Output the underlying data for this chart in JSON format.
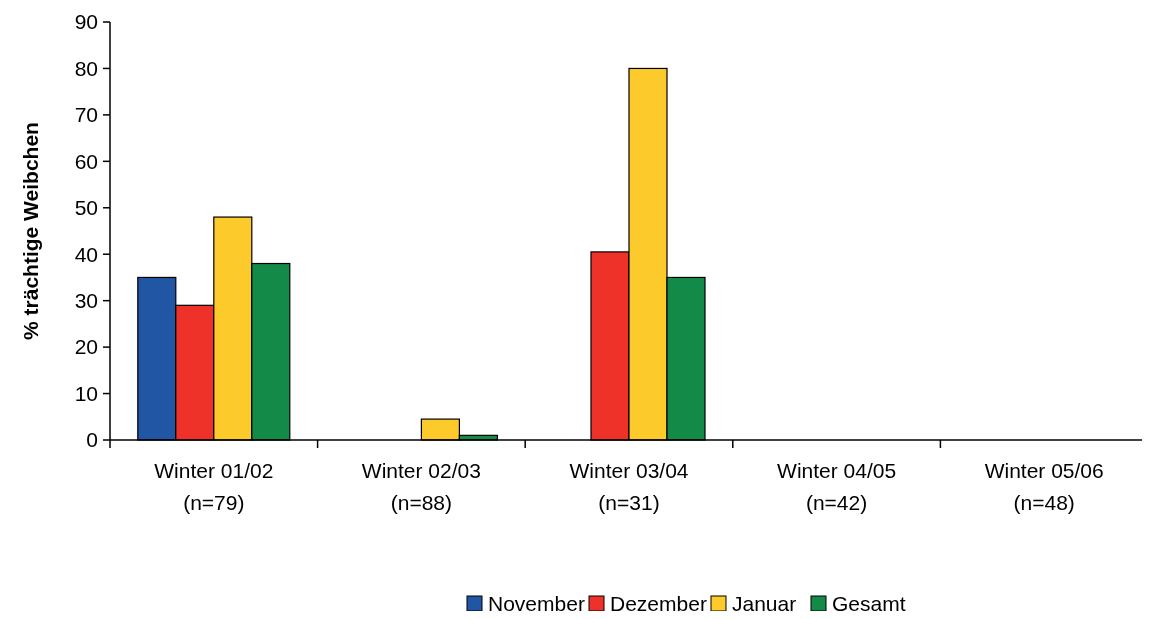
{
  "chart_data": {
    "type": "bar",
    "ylabel": "% trächtige Weibchen",
    "categories": [
      "Winter 01/02\n(n=79)",
      "Winter 02/03\n(n=88)",
      "Winter 03/04\n(n=31)",
      "Winter 04/05\n(n=42)",
      "Winter 05/06\n(n=48)"
    ],
    "series": [
      {
        "name": "November",
        "color": "#2156a5",
        "values": [
          35,
          null,
          null,
          null,
          null
        ]
      },
      {
        "name": "Dezember",
        "color": "#ee3229",
        "values": [
          29,
          null,
          40.5,
          null,
          null
        ]
      },
      {
        "name": "Januar",
        "color": "#fdca2c",
        "values": [
          48,
          4.5,
          80,
          null,
          null
        ]
      },
      {
        "name": "Gesamt",
        "color": "#148a48",
        "values": [
          38,
          1,
          35,
          null,
          null
        ]
      }
    ],
    "ylim": [
      0,
      90
    ],
    "yticks": [
      0,
      10,
      20,
      30,
      40,
      50,
      60,
      70,
      80,
      90
    ],
    "grid": false,
    "legend": "bottom"
  }
}
